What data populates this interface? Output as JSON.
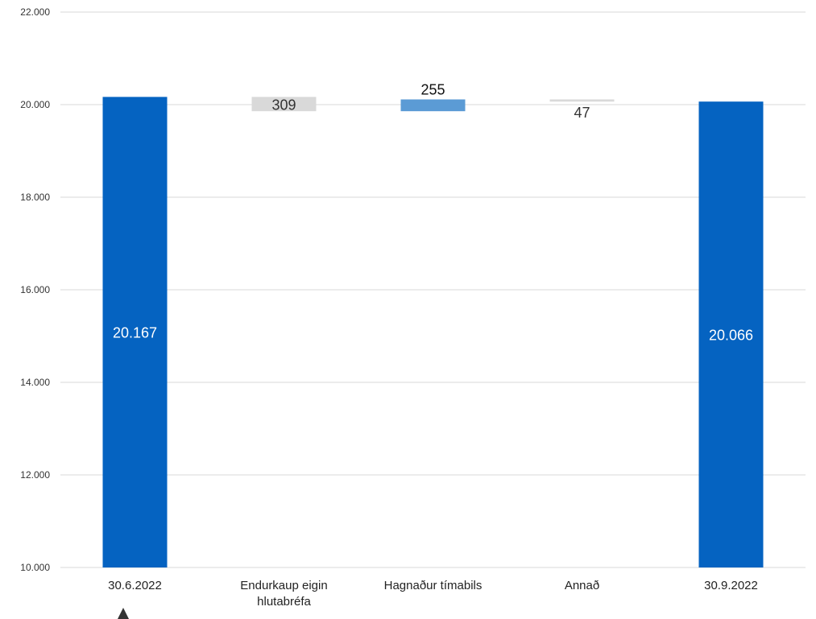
{
  "chart_data": {
    "type": "bar",
    "subtype": "waterfall",
    "categories": [
      "30.6.2022",
      "Endurkaup eigin hlutabréfa",
      "Hagnaður tímabils",
      "Annað",
      "30.9.2022"
    ],
    "category_lines": [
      [
        "30.6.2022"
      ],
      [
        "Endurkaup eigin",
        "hlutabréfa"
      ],
      [
        "Hagnaður tímabils"
      ],
      [
        "Annað"
      ],
      [
        "30.9.2022"
      ]
    ],
    "bars": [
      {
        "kind": "total",
        "start": 0,
        "end": 20167,
        "label": "20.167",
        "color": "#0563c1",
        "label_color": "#ffffff",
        "label_position": "inside"
      },
      {
        "kind": "decrease",
        "start": 20167,
        "end": 19858,
        "label": "309",
        "color": "#d9d9d9",
        "label_color": "#333333",
        "label_position": "inside"
      },
      {
        "kind": "increase",
        "start": 19858,
        "end": 20113,
        "label": "255",
        "color": "#5b9bd5",
        "label_color": "#111111",
        "label_position": "above"
      },
      {
        "kind": "decrease",
        "start": 20113,
        "end": 20066,
        "label": "47",
        "color": "#d9d9d9",
        "label_color": "#333333",
        "label_position": "below"
      },
      {
        "kind": "total",
        "start": 0,
        "end": 20066,
        "label": "20.066",
        "color": "#0563c1",
        "label_color": "#ffffff",
        "label_position": "inside"
      }
    ],
    "y_ticks": [
      10000,
      12000,
      14000,
      16000,
      18000,
      20000,
      22000
    ],
    "y_tick_labels": [
      "10.000",
      "12.000",
      "14.000",
      "16.000",
      "18.000",
      "20.000",
      "22.000"
    ],
    "ylim": [
      10000,
      22000
    ],
    "grid": true,
    "title": "",
    "xlabel": "",
    "ylabel": ""
  }
}
